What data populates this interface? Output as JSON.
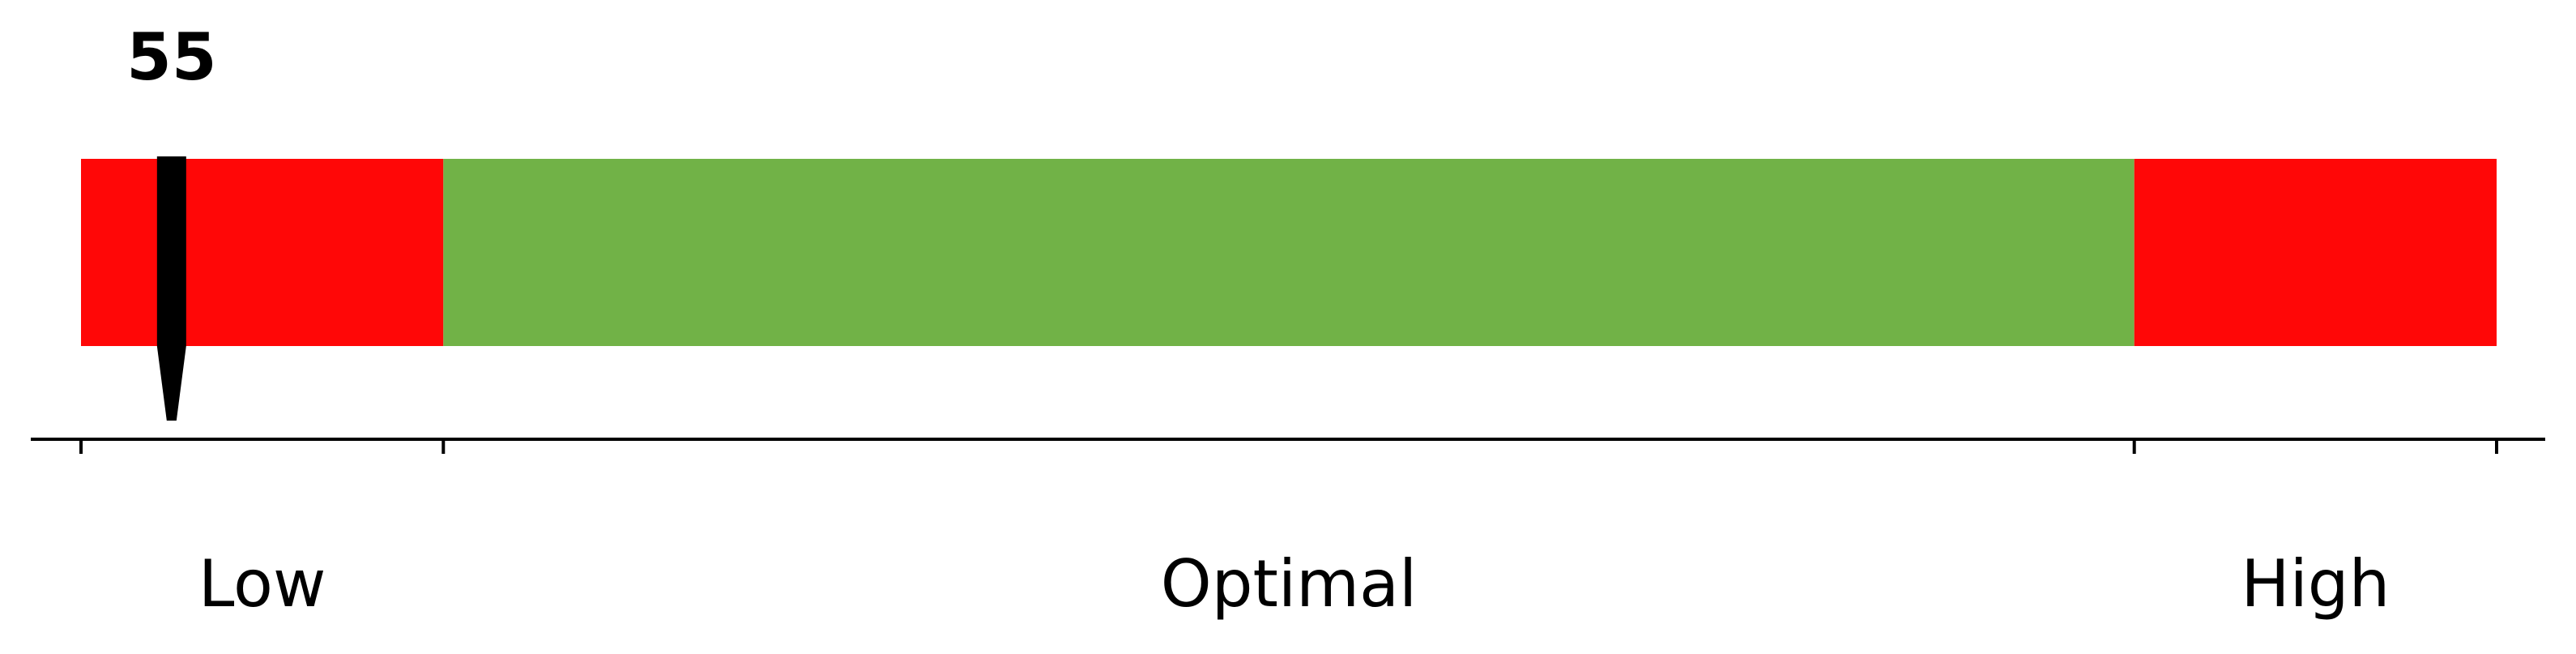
{
  "chart_data": {
    "type": "bar",
    "orientation": "horizontal",
    "value": 55,
    "value_label": "55",
    "range": [
      40,
      440
    ],
    "zones": [
      {
        "name": "Low",
        "start": 40,
        "end": 100,
        "color": "#ff0707"
      },
      {
        "name": "Optimal",
        "start": 100,
        "end": 380,
        "color": "#71b247"
      },
      {
        "name": "High",
        "start": 380,
        "end": 440,
        "color": "#ff0707"
      }
    ],
    "tick_values": [
      40,
      100,
      380,
      440
    ],
    "tick_labels_shown": false,
    "grid": false,
    "legend": "none"
  }
}
